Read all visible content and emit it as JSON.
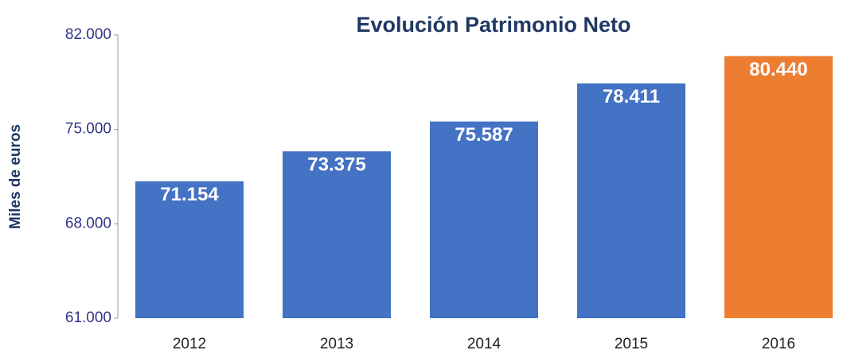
{
  "chart_data": {
    "type": "bar",
    "title": "Evolución Patrimonio Neto",
    "y_label": "Miles de euros",
    "categories": [
      "2012",
      "2013",
      "2014",
      "2015",
      "2016"
    ],
    "values": [
      71154,
      73375,
      75587,
      78411,
      80440
    ],
    "value_labels": [
      "71.154",
      "73.375",
      "75.587",
      "78.411",
      "80.440"
    ],
    "colors": [
      "#4472c4",
      "#4472c4",
      "#4472c4",
      "#4472c4",
      "#ed7d31"
    ],
    "ylim": [
      61000,
      82000
    ],
    "yticks": [
      {
        "value": 61000,
        "label": "61.000"
      },
      {
        "value": 68000,
        "label": "68.000"
      },
      {
        "value": 75000,
        "label": "75.000"
      },
      {
        "value": 82000,
        "label": "82.000"
      }
    ],
    "grid": false
  }
}
